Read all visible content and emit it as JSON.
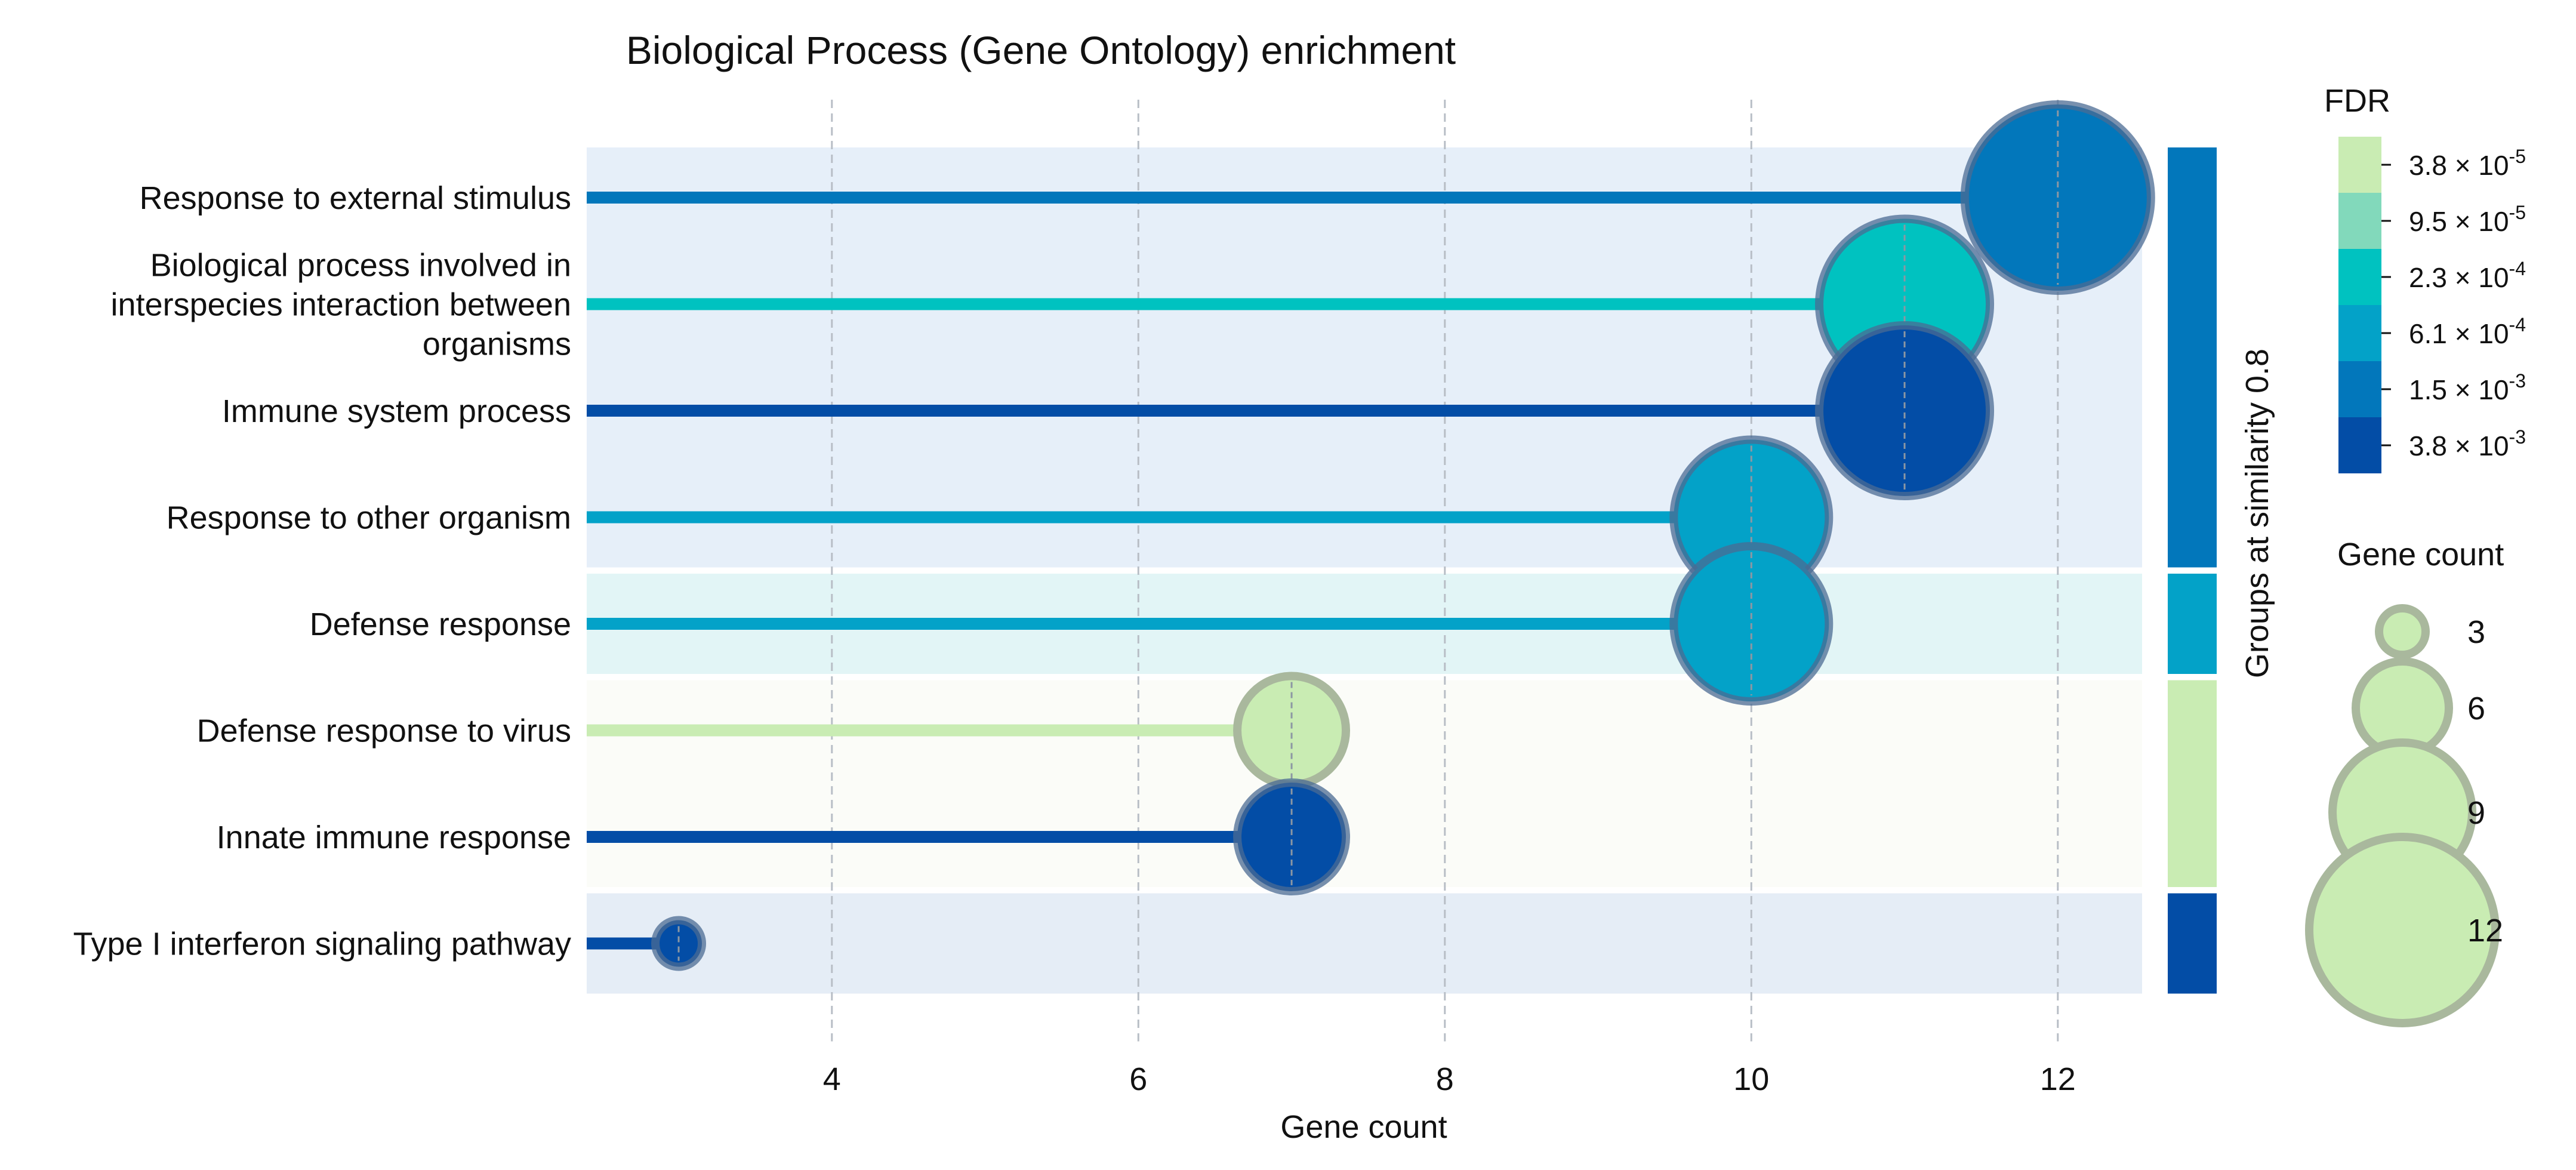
{
  "chart_data": {
    "type": "lollipop",
    "title": "Biological Process (Gene Ontology) enrichment",
    "xlabel": "Gene count",
    "xlim": [
      2.4,
      12.55
    ],
    "xticks": [
      4,
      6,
      8,
      10,
      12
    ],
    "grid": "vertical-dashed",
    "group_axis_label": "Groups at similarity 0.8",
    "categories": [
      "Response to external stimulus",
      "Biological process involved in interspecies interaction between organisms",
      "Immune system process",
      "Response to other organism",
      "Defense response",
      "Defense response to virus",
      "Innate immune response",
      "Type I interferon signaling pathway"
    ],
    "category_label_lines": [
      [
        "Response to external stimulus"
      ],
      [
        "Biological process involved in",
        "interspecies interaction between",
        "organisms"
      ],
      [
        "Immune system process"
      ],
      [
        "Response to other organism"
      ],
      [
        "Defense response"
      ],
      [
        "Defense response to virus"
      ],
      [
        "Innate immune response"
      ],
      [
        "Type I interferon signaling pathway"
      ]
    ],
    "values": [
      12,
      11,
      11,
      10,
      10,
      7,
      7,
      3
    ],
    "colors": [
      "#0277bb",
      "#00c2c0",
      "#034da6",
      "#03a2c8",
      "#03a2c8",
      "#c9ecb3",
      "#034da6",
      "#034da6"
    ],
    "groups": [
      {
        "rows": [
          0,
          3
        ],
        "color": "#0277bb",
        "bg": "#e6eff9"
      },
      {
        "rows": [
          4,
          4
        ],
        "color": "#03a2c8",
        "bg": "#e2f5f6"
      },
      {
        "rows": [
          5,
          6
        ],
        "color": "#c9ecb3",
        "bg": "#fbfcf8"
      },
      {
        "rows": [
          7,
          7
        ],
        "color": "#034da6",
        "bg": "#e5edf6"
      }
    ],
    "fdr_legend": {
      "title": "FDR",
      "entries": [
        {
          "label": "3.8 × 10",
          "exp": "-5",
          "color": "#c9ecb3"
        },
        {
          "label": "9.5 × 10",
          "exp": "-5",
          "color": "#82d9bb"
        },
        {
          "label": "2.3 × 10",
          "exp": "-4",
          "color": "#00c2c0"
        },
        {
          "label": "6.1 × 10",
          "exp": "-4",
          "color": "#03a2c8"
        },
        {
          "label": "1.5 × 10",
          "exp": "-3",
          "color": "#0277bb"
        },
        {
          "label": "3.8 × 10",
          "exp": "-3",
          "color": "#034da6"
        }
      ]
    },
    "size_legend": {
      "title": "Gene count",
      "entries": [
        3,
        6,
        9,
        12
      ],
      "fill": "#c9ecb3",
      "stroke": "#a9b89d"
    }
  }
}
